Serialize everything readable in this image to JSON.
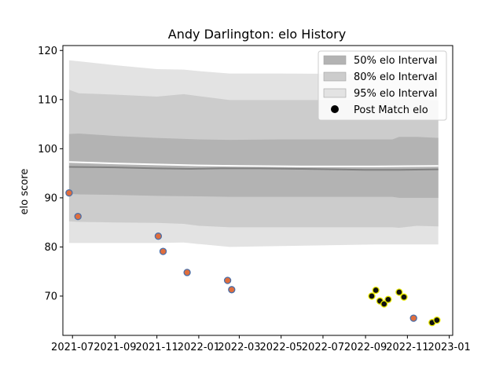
{
  "chart_data": {
    "type": "scatter",
    "title": "Andy Darlington: elo History",
    "xlabel": "",
    "ylabel": "elo score",
    "xlim": [
      "2021-06-17",
      "2023-01-06"
    ],
    "ylim": [
      62,
      121
    ],
    "x_ticks": [
      {
        "date": "2021-07-01",
        "label": "2021-07"
      },
      {
        "date": "2021-09-01",
        "label": "2021-09"
      },
      {
        "date": "2021-11-01",
        "label": "2021-11"
      },
      {
        "date": "2022-01-01",
        "label": "2022-01"
      },
      {
        "date": "2022-03-01",
        "label": "2022-03"
      },
      {
        "date": "2022-05-01",
        "label": "2022-05"
      },
      {
        "date": "2022-07-01",
        "label": "2022-07"
      },
      {
        "date": "2022-09-01",
        "label": "2022-09"
      },
      {
        "date": "2022-11-01",
        "label": "2022-11"
      },
      {
        "date": "2023-01-01",
        "label": "2023-01"
      }
    ],
    "y_ticks": [
      70,
      80,
      90,
      100,
      110,
      120
    ],
    "grid": false,
    "legend_position": "top-right",
    "legend": [
      {
        "label": "50% elo Interval",
        "kind": "patch",
        "color": "#b3b3b3"
      },
      {
        "label": "80% elo Interval",
        "kind": "patch",
        "color": "#cccccc"
      },
      {
        "label": "95% elo Interval",
        "kind": "patch",
        "color": "#e3e3e3"
      },
      {
        "label": "Post Match elo",
        "kind": "marker",
        "color": "#000000"
      }
    ],
    "bands": [
      {
        "name": "95% elo Interval",
        "color": "#e3e3e3",
        "x": [
          "2021-06-26",
          "2021-07-10",
          "2021-09-01",
          "2021-11-01",
          "2021-12-10",
          "2022-01-01",
          "2022-02-15",
          "2022-05-01",
          "2022-09-15",
          "2022-10-20",
          "2022-11-15",
          "2022-12-16"
        ],
        "upper": [
          118,
          117.8,
          117,
          116.2,
          116.1,
          115.8,
          115.3,
          115.3,
          115.2,
          115.1,
          115.1,
          115.0
        ],
        "lower": [
          80.8,
          80.8,
          80.8,
          80.8,
          80.9,
          80.6,
          80.0,
          80.2,
          80.5,
          80.5,
          80.5,
          80.5
        ]
      },
      {
        "name": "80% elo Interval",
        "color": "#cccccc",
        "x": [
          "2021-06-26",
          "2021-07-10",
          "2021-09-01",
          "2021-11-01",
          "2021-12-10",
          "2022-01-01",
          "2022-02-15",
          "2022-05-01",
          "2022-09-15",
          "2022-10-10",
          "2022-10-20",
          "2022-11-15",
          "2022-12-16"
        ],
        "upper": [
          112,
          111.3,
          111,
          110.6,
          111.1,
          110.7,
          109.9,
          109.9,
          109.9,
          109.9,
          110.1,
          110.0,
          109.8
        ],
        "lower": [
          85.2,
          85.1,
          85.0,
          84.9,
          84.7,
          84.3,
          84.0,
          84.0,
          84.0,
          84.0,
          83.9,
          84.3,
          84.2
        ]
      },
      {
        "name": "50% elo Interval",
        "color": "#b3b3b3",
        "x": [
          "2021-06-26",
          "2021-07-10",
          "2021-09-01",
          "2021-11-01",
          "2022-01-01",
          "2022-02-15",
          "2022-05-01",
          "2022-09-15",
          "2022-10-10",
          "2022-10-20",
          "2022-11-15",
          "2022-12-16"
        ],
        "upper": [
          103,
          103.1,
          102.6,
          102.2,
          101.9,
          101.8,
          101.9,
          101.9,
          101.9,
          102.4,
          102.4,
          102.2
        ],
        "lower": [
          90.8,
          90.7,
          90.6,
          90.4,
          90.3,
          90.2,
          90.2,
          90.2,
          90.2,
          90.0,
          90.0,
          90.0
        ]
      }
    ],
    "lines": [
      {
        "role": "mean",
        "color": "#ffffff",
        "width": 2,
        "x": [
          "2021-06-26",
          "2021-09-01",
          "2021-11-01",
          "2022-01-01",
          "2022-03-01",
          "2022-06-01",
          "2022-09-15",
          "2022-12-16"
        ],
        "y": [
          97.3,
          97.0,
          96.8,
          96.6,
          96.5,
          96.4,
          96.4,
          96.5
        ]
      },
      {
        "role": "median",
        "color": "#808080",
        "width": 2,
        "x": [
          "2021-06-26",
          "2021-09-01",
          "2021-11-01",
          "2021-12-20",
          "2022-02-01",
          "2022-04-01",
          "2022-06-01",
          "2022-09-01",
          "2022-10-20",
          "2022-12-16"
        ],
        "y": [
          96.3,
          96.2,
          96.0,
          95.9,
          96.0,
          96.0,
          95.9,
          95.7,
          95.7,
          95.8
        ]
      }
    ],
    "series": [
      {
        "name": "Post Match elo",
        "points": [
          {
            "date": "2021-06-26",
            "elo": 91.0,
            "fill": "#e06d3c",
            "edge": "#4a6ea8"
          },
          {
            "date": "2021-07-09",
            "elo": 86.2,
            "fill": "#e06d3c",
            "edge": "#4a6ea8"
          },
          {
            "date": "2021-11-03",
            "elo": 82.2,
            "fill": "#e06d3c",
            "edge": "#4a6ea8"
          },
          {
            "date": "2021-11-10",
            "elo": 79.1,
            "fill": "#e06d3c",
            "edge": "#4a6ea8"
          },
          {
            "date": "2021-12-15",
            "elo": 74.8,
            "fill": "#e06d3c",
            "edge": "#4a6ea8"
          },
          {
            "date": "2022-02-12",
            "elo": 73.2,
            "fill": "#e06d3c",
            "edge": "#4a6ea8"
          },
          {
            "date": "2022-02-18",
            "elo": 71.3,
            "fill": "#e06d3c",
            "edge": "#4a6ea8"
          },
          {
            "date": "2022-09-10",
            "elo": 70.0,
            "fill": "#111111",
            "edge": "#e8e800"
          },
          {
            "date": "2022-09-16",
            "elo": 71.2,
            "fill": "#111111",
            "edge": "#e8e800"
          },
          {
            "date": "2022-09-22",
            "elo": 69.0,
            "fill": "#111111",
            "edge": "#e8e800"
          },
          {
            "date": "2022-09-28",
            "elo": 68.4,
            "fill": "#111111",
            "edge": "#e8e800"
          },
          {
            "date": "2022-10-04",
            "elo": 69.3,
            "fill": "#111111",
            "edge": "#e8e800"
          },
          {
            "date": "2022-10-20",
            "elo": 70.8,
            "fill": "#111111",
            "edge": "#e8e800"
          },
          {
            "date": "2022-10-27",
            "elo": 69.8,
            "fill": "#111111",
            "edge": "#e8e800"
          },
          {
            "date": "2022-11-10",
            "elo": 65.5,
            "fill": "#e06d3c",
            "edge": "#4a6ea8"
          },
          {
            "date": "2022-12-07",
            "elo": 64.6,
            "fill": "#111111",
            "edge": "#e8e800"
          },
          {
            "date": "2022-12-14",
            "elo": 65.1,
            "fill": "#111111",
            "edge": "#e8e800"
          }
        ]
      }
    ]
  }
}
